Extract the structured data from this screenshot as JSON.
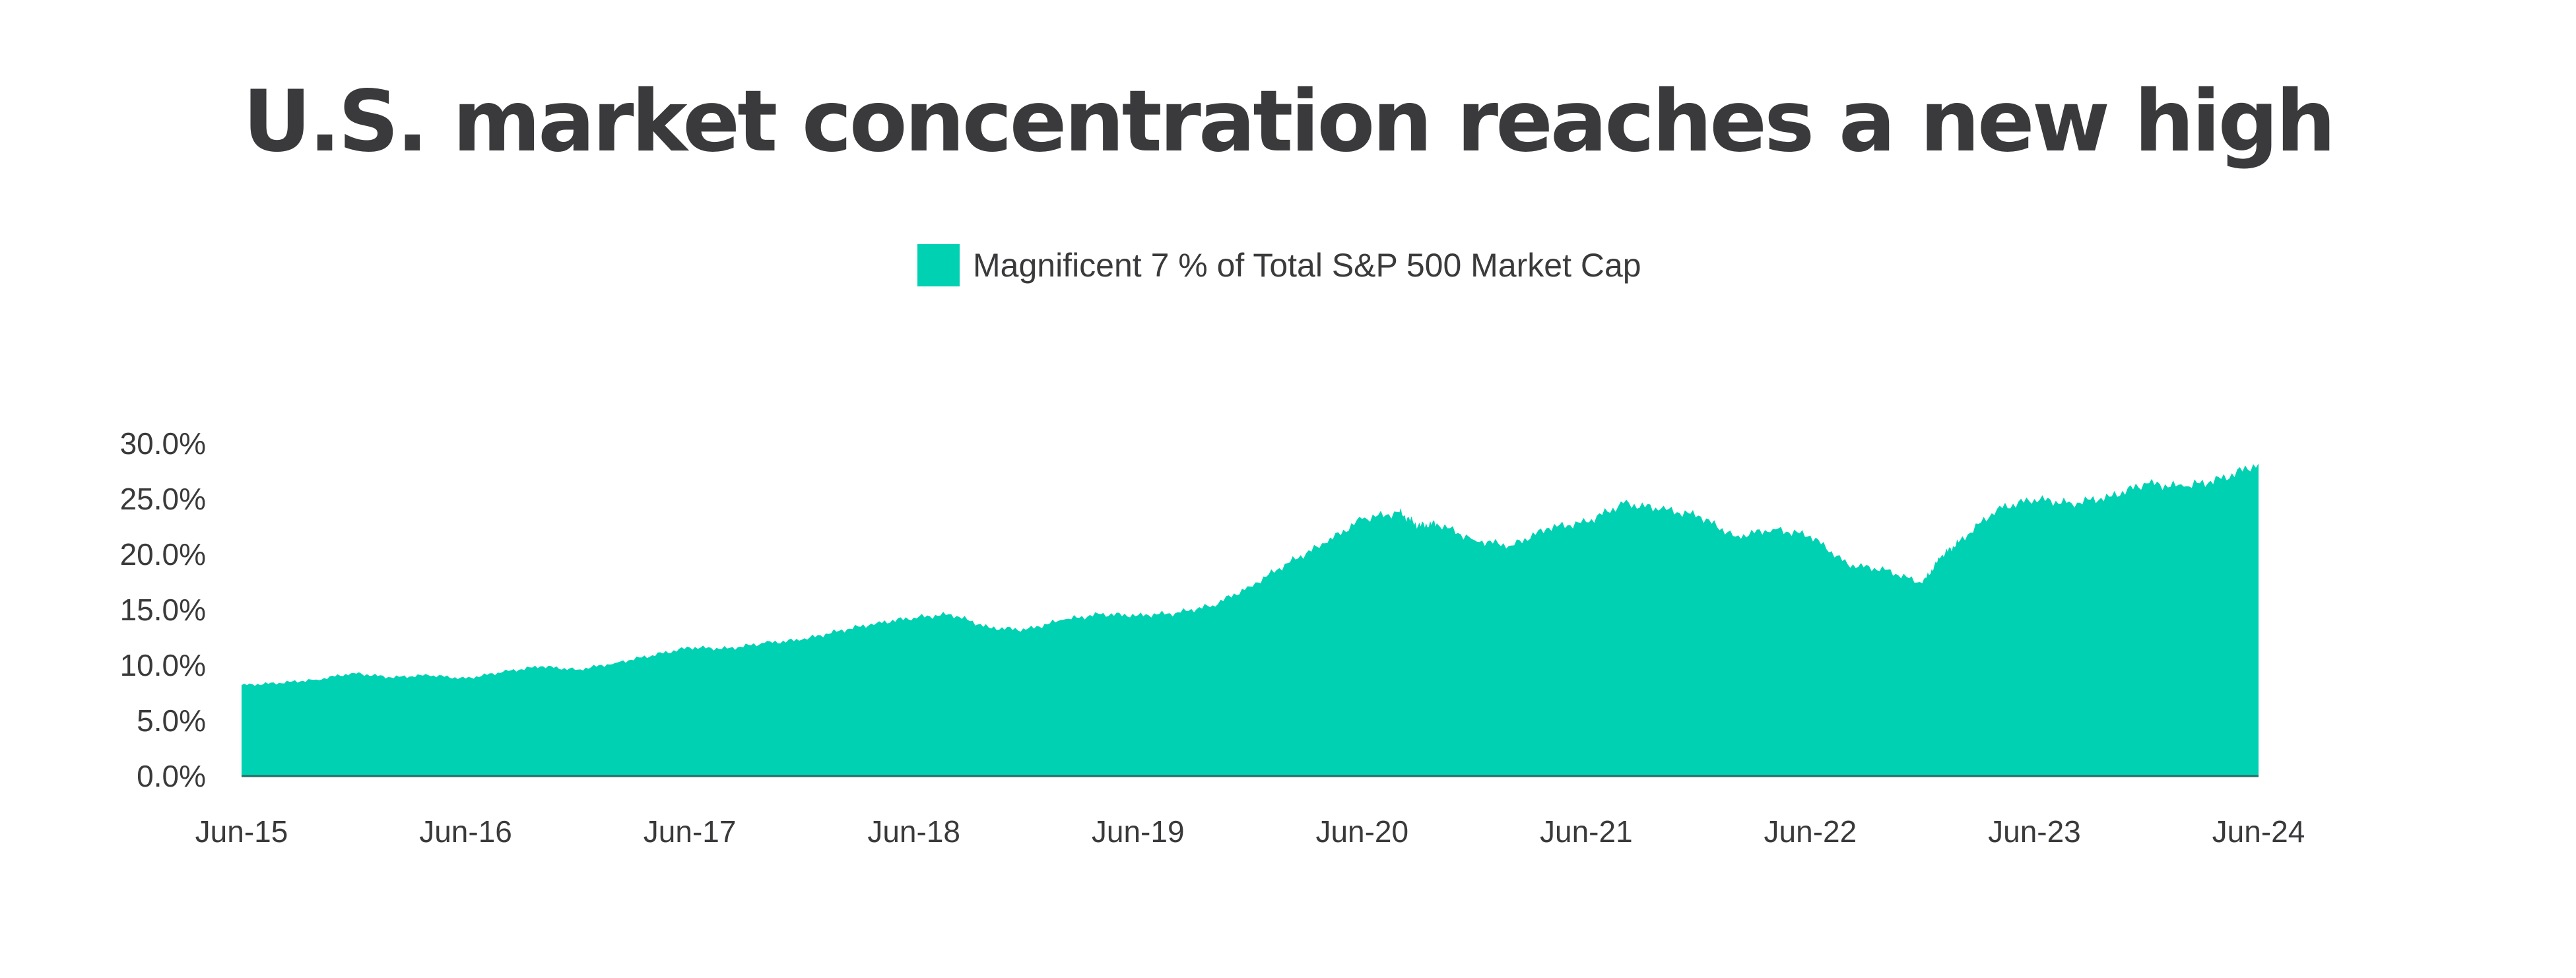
{
  "chart_data": {
    "type": "area",
    "title": "U.S. market concentration reaches a new high",
    "legend_position": "top-center",
    "grid": false,
    "xlabel": "",
    "ylabel": "",
    "ylim": [
      0,
      30
    ],
    "y_ticks": [
      0,
      5,
      10,
      15,
      20,
      25,
      30
    ],
    "y_tick_labels": [
      "0.0%",
      "5.0%",
      "10.0%",
      "15.0%",
      "20.0%",
      "25.0%",
      "30.0%"
    ],
    "x_ticks": [
      "2015-06",
      "2016-06",
      "2017-06",
      "2018-06",
      "2019-06",
      "2020-06",
      "2021-06",
      "2022-06",
      "2023-06",
      "2024-06"
    ],
    "x_tick_labels": [
      "Jun-15",
      "Jun-16",
      "Jun-17",
      "Jun-18",
      "Jun-19",
      "Jun-20",
      "Jun-21",
      "Jun-22",
      "Jun-23",
      "Jun-24"
    ],
    "series": [
      {
        "name": "Magnificent 7 % of Total S&P 500 Market Cap",
        "color": "#00d1b2",
        "x": [
          "2015-06",
          "2015-08",
          "2015-10",
          "2015-12",
          "2016-02",
          "2016-04",
          "2016-06",
          "2016-08",
          "2016-10",
          "2016-12",
          "2017-02",
          "2017-04",
          "2017-06",
          "2017-08",
          "2017-10",
          "2017-12",
          "2018-02",
          "2018-04",
          "2018-06",
          "2018-08",
          "2018-10",
          "2018-12",
          "2019-02",
          "2019-04",
          "2019-06",
          "2019-08",
          "2019-10",
          "2019-12",
          "2020-02",
          "2020-04",
          "2020-06",
          "2020-08",
          "2020-09",
          "2020-10",
          "2020-12",
          "2021-02",
          "2021-04",
          "2021-06",
          "2021-08",
          "2021-10",
          "2021-12",
          "2022-02",
          "2022-04",
          "2022-06",
          "2022-08",
          "2022-10",
          "2022-12",
          "2023-01",
          "2023-02",
          "2023-04",
          "2023-06",
          "2023-08",
          "2023-10",
          "2023-12",
          "2024-02",
          "2024-04",
          "2024-06"
        ],
        "values": [
          8.2,
          8.4,
          8.7,
          9.3,
          8.9,
          9.1,
          8.8,
          9.4,
          9.9,
          9.6,
          10.2,
          10.9,
          11.6,
          11.5,
          12.0,
          12.3,
          13.1,
          13.8,
          14.3,
          14.6,
          13.4,
          13.2,
          14.1,
          14.6,
          14.5,
          14.7,
          15.4,
          17.1,
          19.2,
          21.0,
          23.2,
          23.8,
          22.6,
          22.8,
          21.3,
          20.8,
          22.4,
          22.9,
          24.6,
          24.1,
          23.5,
          21.6,
          22.3,
          21.7,
          19.1,
          18.6,
          17.4,
          19.8,
          21.2,
          24.1,
          25.0,
          24.6,
          25.2,
          26.4,
          26.1,
          26.8,
          28.2
        ]
      }
    ]
  }
}
